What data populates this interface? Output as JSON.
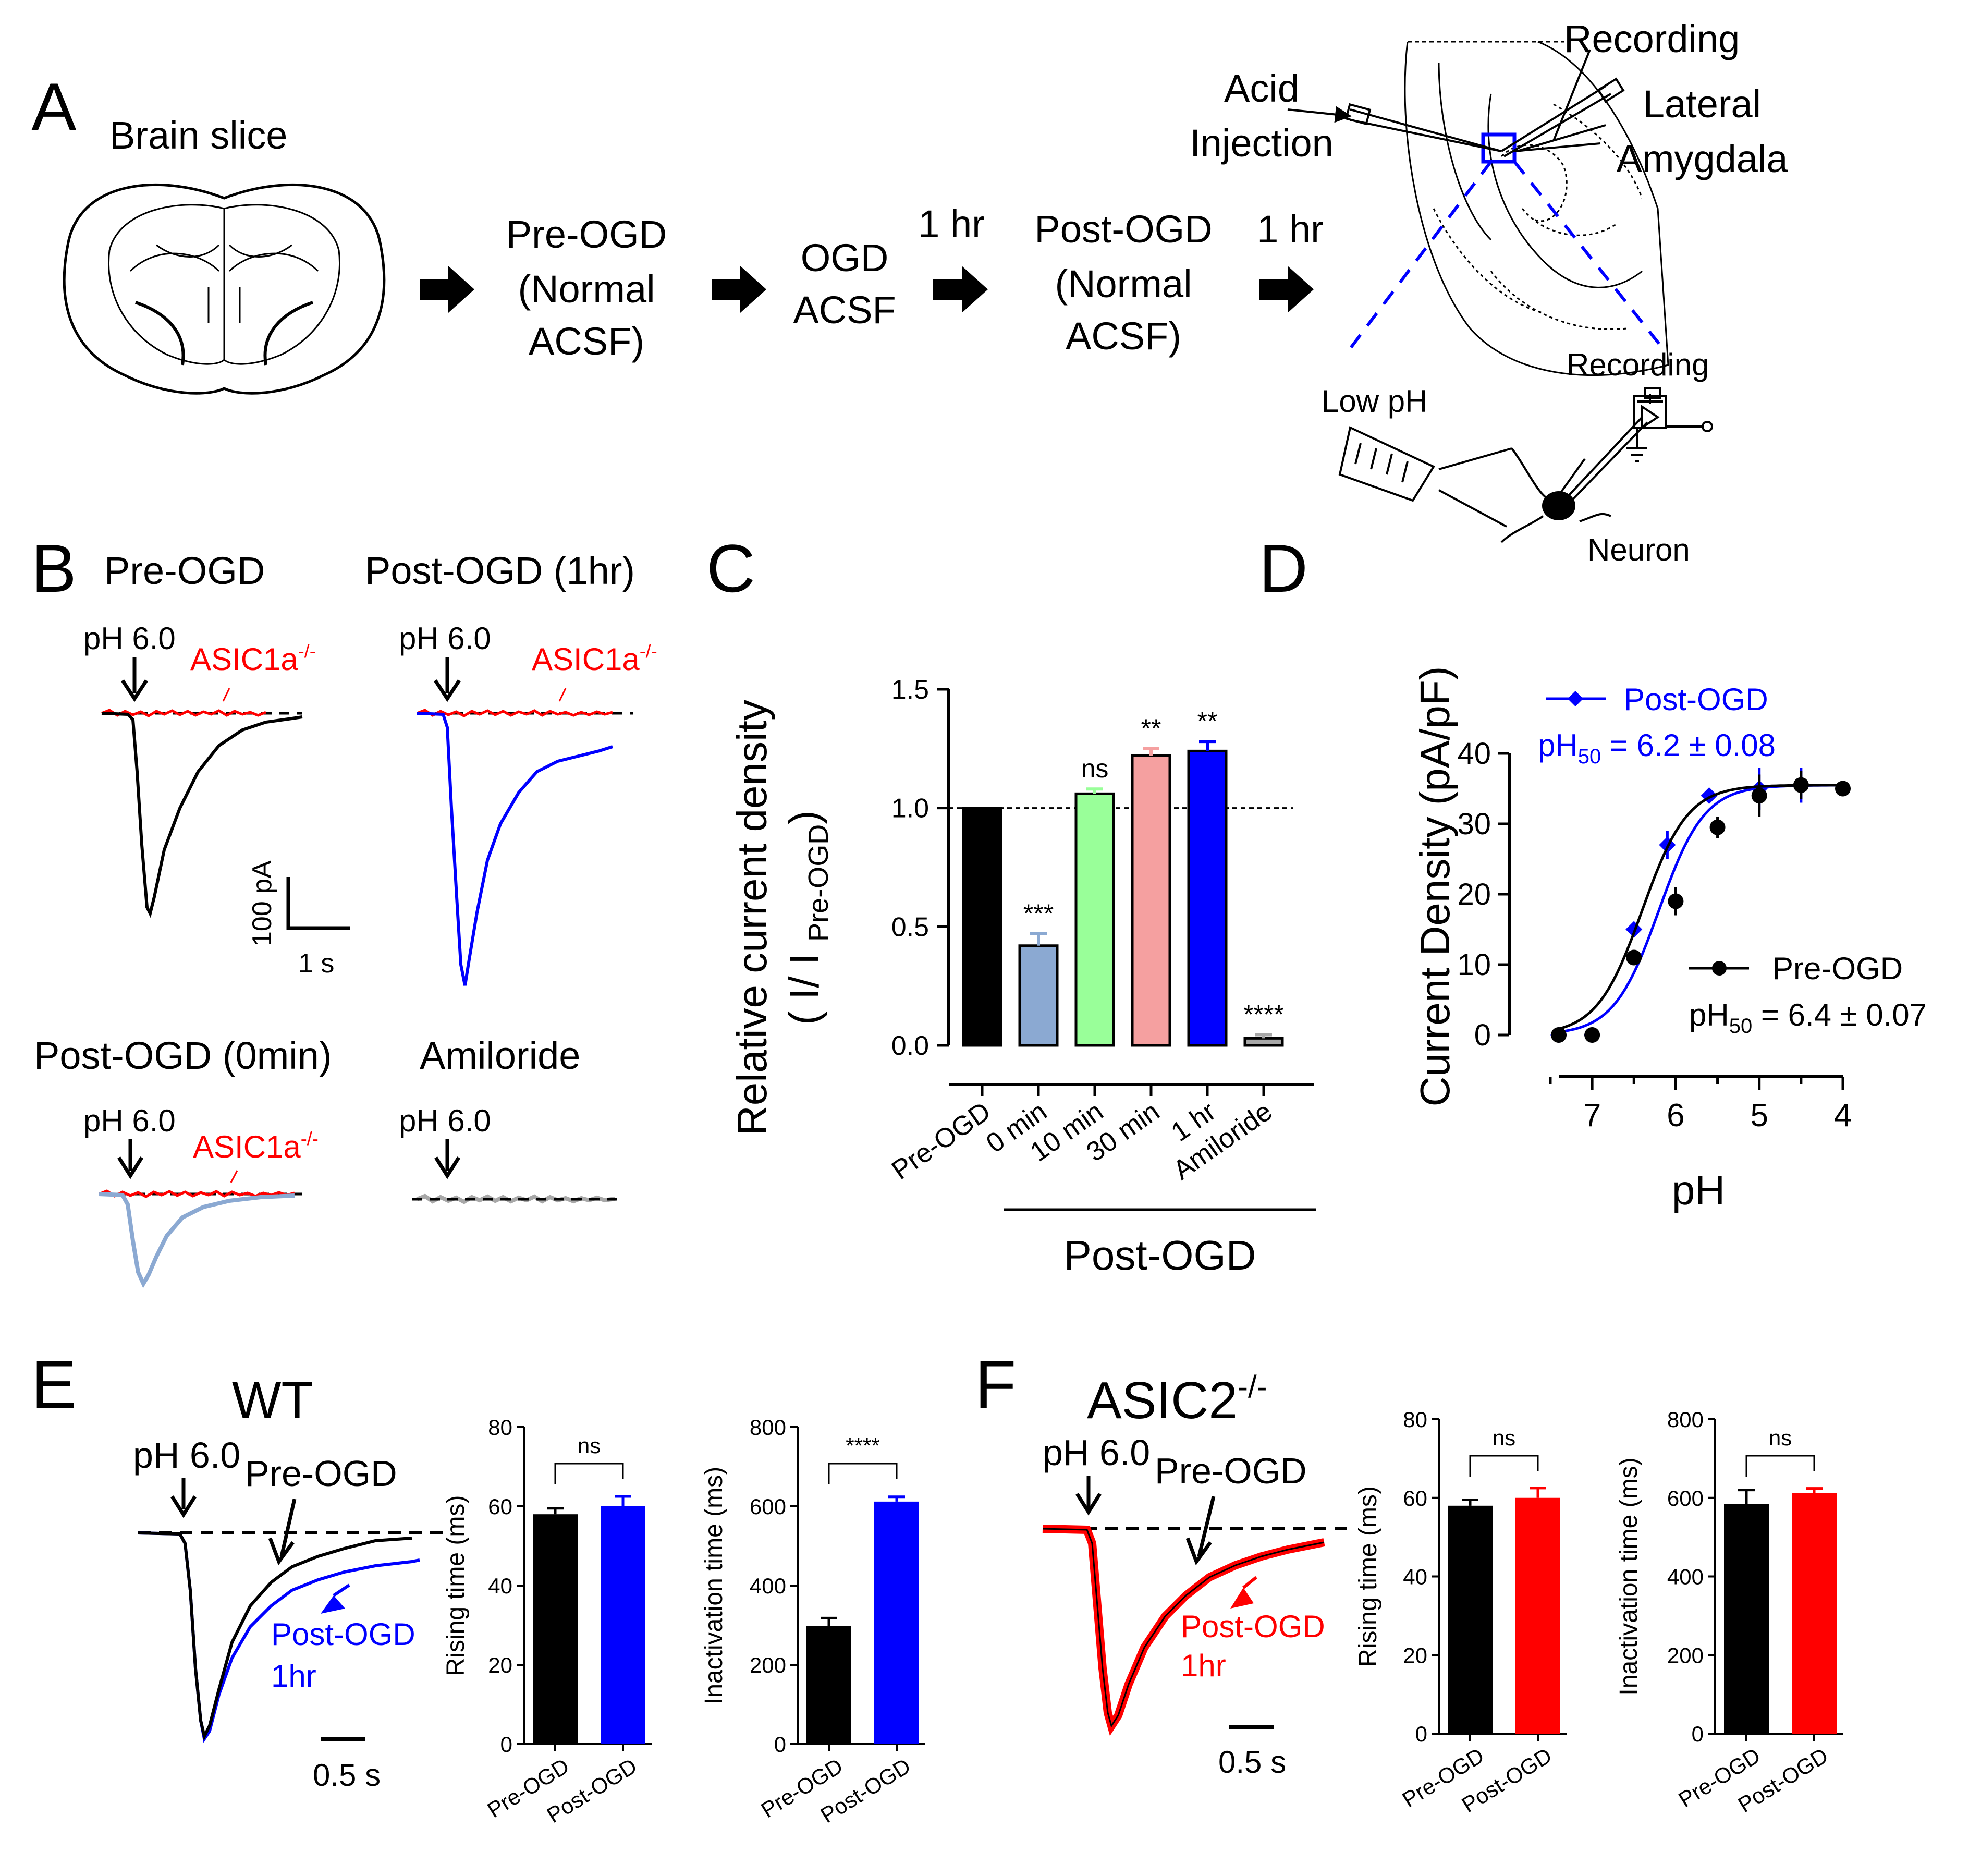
{
  "colors": {
    "black": "#000000",
    "blue": "#0000ff",
    "red": "#ff0000",
    "lightblue": "#8ba9d2",
    "green": "#99ff99",
    "pink": "#f5a0a0",
    "gray": "#a8a8a8"
  },
  "panelA": {
    "label": "A",
    "brain_slice": "Brain slice",
    "steps": {
      "pre_l1": "Pre-OGD",
      "pre_l2": "(Normal",
      "pre_l3": "ACSF)",
      "ogd_l1": "OGD",
      "ogd_l2": "ACSF",
      "time1": "1 hr",
      "post_l1": "Post-OGD",
      "post_l2": "(Normal",
      "post_l3": "ACSF)",
      "time2": "1 hr"
    },
    "recording": "Recording",
    "acid_l1": "Acid",
    "acid_l2": "Injection",
    "lateral": "Lateral",
    "amygdala": "Amygdala",
    "recording2": "Recording",
    "low_ph": "Low pH",
    "neuron": "Neuron"
  },
  "panelB": {
    "label": "B",
    "t1": "Pre-OGD",
    "t2": "Post-OGD (1hr)",
    "t3": "Post-OGD (0min)",
    "t4": "Amiloride",
    "ph": "pH 6.0",
    "ko_base": "ASIC1a",
    "ko_sup": "-/-",
    "scale_y": "100 pA",
    "scale_x": "1 s"
  },
  "panelC": {
    "label": "C",
    "chart_data": {
      "type": "bar",
      "ylabel": "Relative current density",
      "ylabel2_prefix": "( I/ I ",
      "ylabel2_sub": "Pre-OGD",
      "ylabel2_suffix": ")",
      "ylim": [
        0,
        1.5
      ],
      "yticks": [
        "0.0",
        "0.5",
        "1.0",
        "1.5"
      ],
      "reference_line": 1.0,
      "categories": [
        "Pre-OGD",
        "0 min",
        "10 min",
        "30 min",
        "1 hr",
        "Amiloride"
      ],
      "values": [
        1.0,
        0.42,
        1.06,
        1.22,
        1.24,
        0.03
      ],
      "errors": [
        0.0,
        0.05,
        0.02,
        0.03,
        0.04,
        0.015
      ],
      "significance": [
        "",
        "***",
        "ns",
        "**",
        "**",
        "****"
      ],
      "group_label": "Post-OGD"
    }
  },
  "panelD": {
    "label": "D",
    "chart_data": {
      "type": "line",
      "ylabel": "Current Density (pA/pF)",
      "xlabel": "pH",
      "xticks": [
        "7",
        "6",
        "5",
        "4"
      ],
      "yticks": [
        "0",
        "10",
        "20",
        "30",
        "40"
      ],
      "xlim": [
        7.4,
        4.0
      ],
      "ylim": [
        0,
        40
      ],
      "series": [
        {
          "name": "Post-OGD",
          "fit_label_base": "pH",
          "fit_label_sub": "50",
          "fit_label_value": " = 6.2 ± 0.08",
          "x": [
            7.4,
            7.0,
            6.5,
            6.1,
            5.6,
            5.0,
            4.5
          ],
          "y": [
            0,
            0,
            15,
            27,
            34,
            35,
            35.5
          ],
          "err": [
            0,
            0,
            1,
            2,
            1,
            3,
            2.5
          ],
          "pH50": 6.2
        },
        {
          "name": "Pre-OGD",
          "fit_label_base": "pH",
          "fit_label_sub": "50",
          "fit_label_value": " = 6.4 ± 0.07",
          "x": [
            7.4,
            7.0,
            6.5,
            6.0,
            5.5,
            5.0,
            4.5,
            4.0
          ],
          "y": [
            0,
            0,
            11,
            19,
            29.5,
            34,
            35.5,
            35
          ],
          "err": [
            0,
            0,
            1,
            2,
            1.5,
            3,
            2,
            0
          ],
          "pH50": 6.4
        }
      ]
    }
  },
  "panelE": {
    "label": "E",
    "title": "WT",
    "ph": "pH 6.0",
    "pre": "Pre-OGD",
    "post_l1": "Post-OGD",
    "post_l2": "1hr",
    "scale": "0.5 s",
    "charts": [
      {
        "type": "bar",
        "ylabel": "Rising time (ms)",
        "ylim": [
          0,
          80
        ],
        "yticks": [
          "0",
          "20",
          "40",
          "60",
          "80"
        ],
        "categories": [
          "Pre-OGD",
          "Post-OGD"
        ],
        "values": [
          58,
          60
        ],
        "errors": [
          1.5,
          2.5
        ],
        "sig": "ns"
      },
      {
        "type": "bar",
        "ylabel": "Inactivation time (ms)",
        "ylim": [
          0,
          800
        ],
        "yticks": [
          "0",
          "200",
          "400",
          "600",
          "800"
        ],
        "categories": [
          "Pre-OGD",
          "Post-OGD"
        ],
        "values": [
          298,
          612
        ],
        "errors": [
          20,
          12
        ],
        "sig": "****"
      }
    ]
  },
  "panelF": {
    "label": "F",
    "title_base": "ASIC2",
    "title_sup": "-/-",
    "ph": "pH 6.0",
    "pre": "Pre-OGD",
    "post_l1": "Post-OGD",
    "post_l2": "1hr",
    "scale": "0.5 s",
    "charts": [
      {
        "type": "bar",
        "ylabel": "Rising time (ms)",
        "ylim": [
          0,
          80
        ],
        "yticks": [
          "0",
          "20",
          "40",
          "60",
          "80"
        ],
        "categories": [
          "Pre-OGD",
          "Post-OGD"
        ],
        "values": [
          58,
          60
        ],
        "errors": [
          1.5,
          2.5
        ],
        "sig": "ns"
      },
      {
        "type": "bar",
        "ylabel": "Inactivation time (ms)",
        "ylim": [
          0,
          800
        ],
        "yticks": [
          "0",
          "200",
          "400",
          "600",
          "800"
        ],
        "categories": [
          "Pre-OGD",
          "Post-OGD"
        ],
        "values": [
          585,
          612
        ],
        "errors": [
          35,
          12
        ],
        "sig": "ns"
      }
    ]
  }
}
